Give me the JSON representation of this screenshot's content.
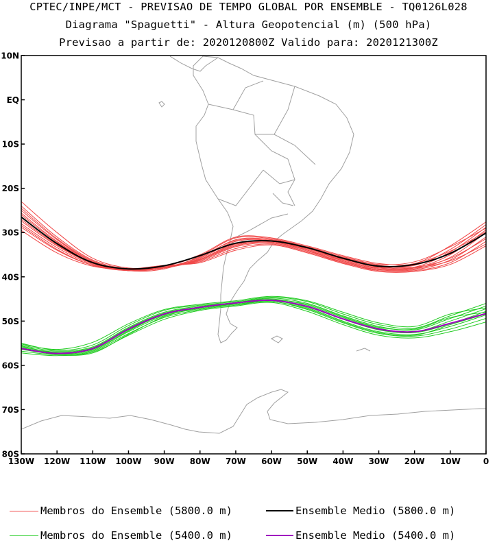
{
  "header": {
    "line1": "CPTEC/INPE/MCT - PREVISAO DE TEMPO GLOBAL POR ENSEMBLE - TQ0126L028",
    "line2": "Diagrama \"Spaguetti\" - Altura Geopotencial (m) (500 hPa)",
    "line3": "Previsao a partir de: 2020120800Z  Valido para: 2020121300Z"
  },
  "colors": {
    "members_5800": "#f04848",
    "members_5400": "#22cc22",
    "mean_5800": "#000000",
    "mean_5400": "#a000c0",
    "land": "#a0a0a0"
  },
  "legend": [
    {
      "label": "Membros do Ensemble (5800.0 m)",
      "color": "#f04848",
      "width": 1
    },
    {
      "label": "Ensemble Medio (5800.0 m)",
      "color": "#000000",
      "width": 2
    },
    {
      "label": "Membros do Ensemble (5400.0 m)",
      "color": "#22cc22",
      "width": 1
    },
    {
      "label": "Ensemble Medio (5400.0 m)",
      "color": "#a000c0",
      "width": 2
    }
  ],
  "chart_data": {
    "type": "line",
    "xlim": [
      -130,
      0
    ],
    "ylim": [
      -80,
      10
    ],
    "x_ticks": [
      {
        "v": -130,
        "label": "130W"
      },
      {
        "v": -120,
        "label": "120W"
      },
      {
        "v": -110,
        "label": "110W"
      },
      {
        "v": -100,
        "label": "100W"
      },
      {
        "v": -90,
        "label": "90W"
      },
      {
        "v": -80,
        "label": "80W"
      },
      {
        "v": -70,
        "label": "70W"
      },
      {
        "v": -60,
        "label": "60W"
      },
      {
        "v": -50,
        "label": "50W"
      },
      {
        "v": -40,
        "label": "40W"
      },
      {
        "v": -30,
        "label": "30W"
      },
      {
        "v": -20,
        "label": "20W"
      },
      {
        "v": -10,
        "label": "10W"
      },
      {
        "v": 0,
        "label": "0"
      }
    ],
    "y_ticks": [
      {
        "v": 10,
        "label": "10N"
      },
      {
        "v": 0,
        "label": "EQ"
      },
      {
        "v": -10,
        "label": "10S"
      },
      {
        "v": -20,
        "label": "20S"
      },
      {
        "v": -30,
        "label": "30S"
      },
      {
        "v": -40,
        "label": "40S"
      },
      {
        "v": -50,
        "label": "50S"
      },
      {
        "v": -60,
        "label": "60S"
      },
      {
        "v": -70,
        "label": "70S"
      },
      {
        "v": -80,
        "label": "80S"
      }
    ],
    "x": [
      -130,
      -120,
      -110,
      -100,
      -90,
      -80,
      -70,
      -60,
      -50,
      -40,
      -30,
      -20,
      -10,
      0
    ],
    "series": [
      {
        "name": "Ensemble Medio (5800.0 m)",
        "role": "mean",
        "level": 5800,
        "lat": [
          -26.5,
          -32.5,
          -36.8,
          -38.2,
          -37.5,
          -35.2,
          -32.4,
          -31.9,
          -33.4,
          -35.8,
          -37.6,
          -37.2,
          -34.7,
          -30.1
        ]
      },
      {
        "name": "Ensemble Medio (5400.0 m)",
        "role": "mean",
        "level": 5400,
        "lat": [
          -56.2,
          -57.3,
          -56.2,
          -51.8,
          -48.4,
          -46.9,
          -45.9,
          -45.3,
          -46.7,
          -49.5,
          -51.8,
          -52.4,
          -50.5,
          -48.3
        ]
      }
    ],
    "members_5800": [
      [
        -23.0,
        -30.0,
        -35.8,
        -38.0,
        -37.6,
        -35.0,
        -31.0,
        -31.2,
        -33.0,
        -35.2,
        -37.0,
        -37.0,
        -33.0,
        -27.6
      ],
      [
        -24.0,
        -31.0,
        -36.2,
        -38.2,
        -37.8,
        -35.6,
        -31.6,
        -31.6,
        -33.4,
        -35.6,
        -37.4,
        -37.4,
        -33.8,
        -28.2
      ],
      [
        -25.0,
        -31.6,
        -36.6,
        -38.4,
        -38.0,
        -35.8,
        -32.0,
        -31.8,
        -33.6,
        -36.0,
        -37.8,
        -37.8,
        -34.4,
        -28.8
      ],
      [
        -26.0,
        -32.2,
        -36.8,
        -38.6,
        -38.0,
        -36.0,
        -32.4,
        -32.0,
        -33.8,
        -36.2,
        -38.0,
        -38.0,
        -35.0,
        -29.4
      ],
      [
        -27.0,
        -32.8,
        -37.0,
        -38.6,
        -38.0,
        -36.2,
        -32.8,
        -32.2,
        -34.0,
        -36.4,
        -38.2,
        -38.2,
        -35.6,
        -30.0
      ],
      [
        -28.0,
        -33.4,
        -37.2,
        -38.6,
        -37.8,
        -36.4,
        -33.2,
        -32.4,
        -34.2,
        -36.6,
        -38.4,
        -38.4,
        -36.2,
        -31.0
      ],
      [
        -28.8,
        -34.0,
        -37.4,
        -38.4,
        -37.6,
        -36.6,
        -33.6,
        -32.6,
        -34.4,
        -36.8,
        -38.6,
        -38.6,
        -36.8,
        -32.0
      ],
      [
        -29.5,
        -34.6,
        -37.6,
        -38.2,
        -37.4,
        -36.8,
        -34.0,
        -32.8,
        -34.6,
        -37.0,
        -38.8,
        -38.8,
        -37.2,
        -33.0
      ],
      [
        -24.5,
        -31.4,
        -36.4,
        -38.4,
        -37.6,
        -35.2,
        -31.2,
        -31.4,
        -33.2,
        -35.4,
        -37.2,
        -36.6,
        -33.2,
        -29.0
      ],
      [
        -27.4,
        -33.0,
        -37.0,
        -38.4,
        -37.8,
        -36.0,
        -32.6,
        -32.0,
        -33.6,
        -36.0,
        -37.6,
        -37.8,
        -35.8,
        -31.4
      ],
      [
        -25.6,
        -32.0,
        -36.6,
        -38.6,
        -38.2,
        -35.4,
        -31.8,
        -31.6,
        -33.4,
        -36.4,
        -38.0,
        -37.0,
        -34.2,
        -29.8
      ],
      [
        -28.4,
        -33.8,
        -37.4,
        -38.6,
        -38.0,
        -36.2,
        -33.0,
        -32.2,
        -34.0,
        -36.8,
        -38.4,
        -38.0,
        -36.4,
        -32.6
      ]
    ],
    "members_5400": [
      [
        -55.0,
        -56.6,
        -55.4,
        -51.0,
        -47.6,
        -46.4,
        -45.6,
        -44.6,
        -45.6,
        -48.4,
        -50.8,
        -51.6,
        -48.8,
        -46.0
      ],
      [
        -55.4,
        -56.8,
        -55.8,
        -51.4,
        -48.0,
        -46.6,
        -45.8,
        -44.8,
        -46.0,
        -48.8,
        -51.2,
        -52.0,
        -49.4,
        -46.6
      ],
      [
        -55.8,
        -57.0,
        -56.0,
        -51.6,
        -48.2,
        -46.8,
        -45.8,
        -45.0,
        -46.4,
        -49.2,
        -51.6,
        -52.4,
        -50.0,
        -47.2
      ],
      [
        -56.0,
        -57.2,
        -56.2,
        -52.0,
        -48.6,
        -47.0,
        -46.0,
        -45.2,
        -46.8,
        -49.6,
        -52.0,
        -52.6,
        -50.6,
        -47.8
      ],
      [
        -56.4,
        -57.4,
        -56.6,
        -52.4,
        -48.8,
        -47.2,
        -46.2,
        -45.4,
        -47.0,
        -50.0,
        -52.4,
        -53.0,
        -51.2,
        -48.6
      ],
      [
        -56.8,
        -57.6,
        -56.8,
        -52.8,
        -49.2,
        -47.4,
        -46.4,
        -45.6,
        -47.4,
        -50.4,
        -52.8,
        -53.4,
        -51.8,
        -49.4
      ],
      [
        -57.2,
        -57.8,
        -57.0,
        -53.2,
        -49.6,
        -47.6,
        -46.6,
        -45.8,
        -47.8,
        -50.8,
        -53.2,
        -53.8,
        -52.4,
        -50.2
      ],
      [
        -55.2,
        -56.4,
        -54.8,
        -50.6,
        -47.4,
        -46.2,
        -45.4,
        -44.4,
        -45.4,
        -48.0,
        -50.4,
        -51.2,
        -48.4,
        -47.0
      ],
      [
        -55.6,
        -57.2,
        -56.4,
        -52.2,
        -48.4,
        -46.8,
        -46.0,
        -45.2,
        -46.2,
        -49.0,
        -51.4,
        -51.8,
        -49.2,
        -48.0
      ],
      [
        -56.2,
        -57.6,
        -57.2,
        -53.0,
        -49.0,
        -47.0,
        -46.2,
        -45.6,
        -47.2,
        -50.2,
        -52.6,
        -53.2,
        -50.8,
        -48.4
      ]
    ]
  }
}
